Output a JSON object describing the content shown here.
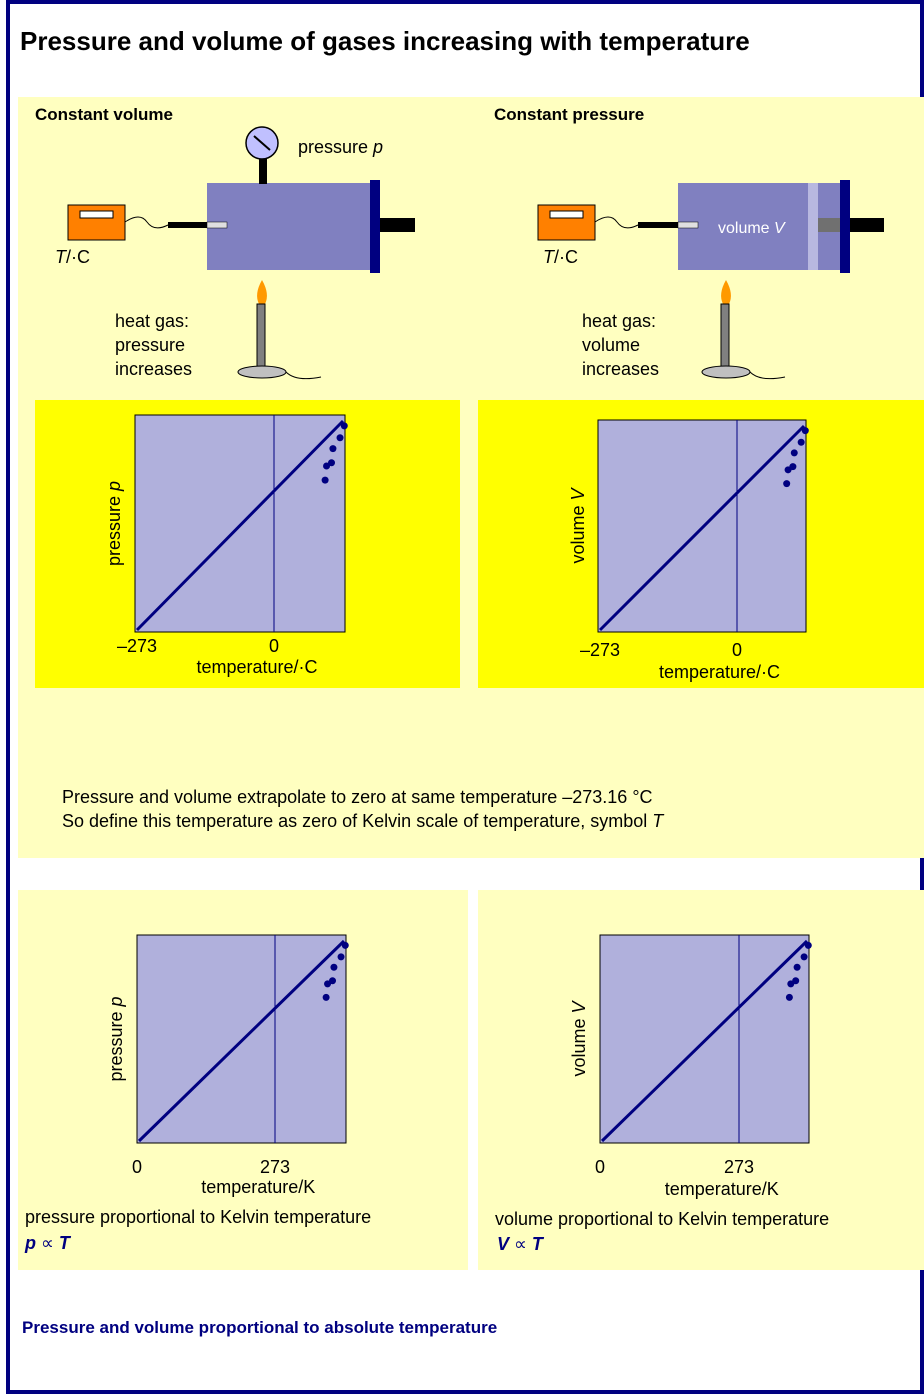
{
  "title": "Pressure and volume of gases increasing with temperature",
  "panels": [
    {
      "heading": "Constant volume",
      "gauge_label": [
        "pressure ",
        "p"
      ],
      "thermometer_label": [
        "T",
        "/·C"
      ],
      "heat_label": [
        "heat gas:",
        "pressure",
        "increases"
      ],
      "graph": {
        "y_label": [
          "pressure ",
          "p"
        ],
        "ticks": [
          "–273",
          "0"
        ],
        "x_label": "temperature/·C"
      }
    },
    {
      "heading": "Constant pressure",
      "volume_label": [
        "volume ",
        "V"
      ],
      "thermometer_label": [
        "T",
        "/·C"
      ],
      "heat_label": [
        "heat gas:",
        "volume",
        "increases"
      ],
      "graph": {
        "y_label": [
          "volume ",
          "V"
        ],
        "ticks": [
          "–273",
          "0"
        ],
        "x_label": "temperature/·C"
      }
    }
  ],
  "conclusion": [
    "Pressure and volume extrapolate to zero at same temperature –273.16 °C",
    "So define this temperature as zero of Kelvin scale of temperature, symbol ",
    "T"
  ],
  "kelvin_graphs": [
    {
      "y_label": [
        "pressure ",
        "p"
      ],
      "ticks": [
        "0",
        "273"
      ],
      "x_label": "temperature/K",
      "caption": "pressure proportional to Kelvin temperature",
      "law": [
        "p",
        " ∝ ",
        "T"
      ]
    },
    {
      "y_label": [
        "volume ",
        "V"
      ],
      "ticks": [
        "0",
        "273"
      ],
      "x_label": "temperature/K",
      "caption": "volume proportional to Kelvin temperature",
      "law": [
        "V",
        " ∝ ",
        "T"
      ]
    }
  ],
  "footer": "Pressure and volume proportional to absolute temperature"
}
